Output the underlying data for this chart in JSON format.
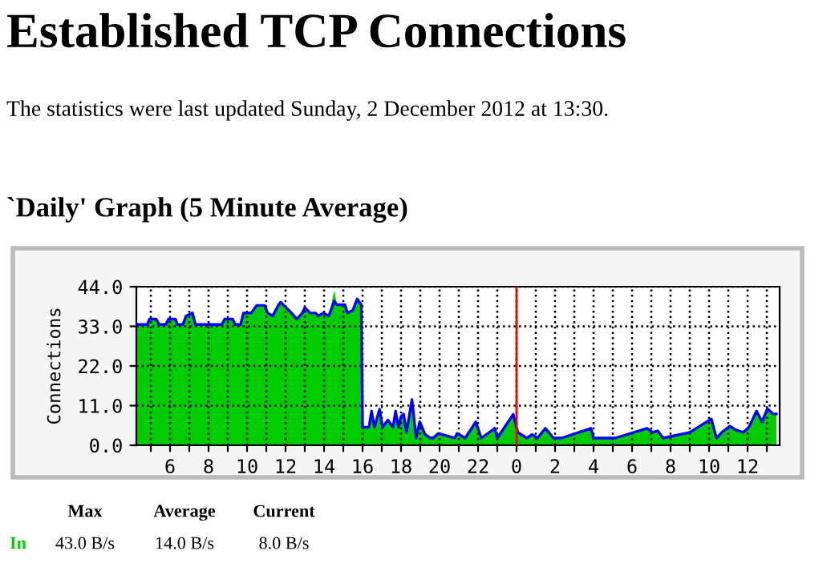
{
  "chart_data": {
    "type": "area",
    "title": "Established TCP Connections",
    "subtitle": "`Daily' Graph (5 Minute Average)",
    "ylabel": "Connections",
    "annotations": [
      "The statistics were last updated Sunday, 2 December 2012 at 13:30.",
      "Max",
      "Average",
      "Current",
      "43.0 B/s",
      "14.0 B/s",
      "8.0 B/s"
    ],
    "xlim": [
      "2012-12-01T04:15",
      "2012-12-02T13:40"
    ],
    "ylim": [
      0,
      44
    ],
    "xticks": [
      {
        "value": "2012-12-01T05:00",
        "label": null
      },
      {
        "value": "2012-12-01T06:00",
        "label": "6"
      },
      {
        "value": "2012-12-01T07:00",
        "label": null
      },
      {
        "value": "2012-12-01T08:00",
        "label": "8"
      },
      {
        "value": "2012-12-01T09:00",
        "label": null
      },
      {
        "value": "2012-12-01T10:00",
        "label": "10"
      },
      {
        "value": "2012-12-01T11:00",
        "label": null
      },
      {
        "value": "2012-12-01T12:00",
        "label": "12"
      },
      {
        "value": "2012-12-01T13:00",
        "label": null
      },
      {
        "value": "2012-12-01T14:00",
        "label": "14"
      },
      {
        "value": "2012-12-01T15:00",
        "label": null
      },
      {
        "value": "2012-12-01T16:00",
        "label": "16"
      },
      {
        "value": "2012-12-01T17:00",
        "label": null
      },
      {
        "value": "2012-12-01T18:00",
        "label": "18"
      },
      {
        "value": "2012-12-01T19:00",
        "label": null
      },
      {
        "value": "2012-12-01T20:00",
        "label": "20"
      },
      {
        "value": "2012-12-01T21:00",
        "label": null
      },
      {
        "value": "2012-12-01T22:00",
        "label": "22"
      },
      {
        "value": "2012-12-01T23:00",
        "label": null
      },
      {
        "value": "2012-12-02T00:00",
        "label": "0"
      },
      {
        "value": "2012-12-02T01:00",
        "label": null
      },
      {
        "value": "2012-12-02T02:00",
        "label": "2"
      },
      {
        "value": "2012-12-02T03:00",
        "label": null
      },
      {
        "value": "2012-12-02T04:00",
        "label": "4"
      },
      {
        "value": "2012-12-02T05:00",
        "label": null
      },
      {
        "value": "2012-12-02T06:00",
        "label": "6"
      },
      {
        "value": "2012-12-02T07:00",
        "label": null
      },
      {
        "value": "2012-12-02T08:00",
        "label": "8"
      },
      {
        "value": "2012-12-02T09:00",
        "label": null
      },
      {
        "value": "2012-12-02T10:00",
        "label": "10"
      },
      {
        "value": "2012-12-02T11:00",
        "label": null
      },
      {
        "value": "2012-12-02T12:00",
        "label": "12"
      },
      {
        "value": "2012-12-02T13:00",
        "label": null
      }
    ],
    "yticks": [
      {
        "value": 0,
        "label": "0.0"
      },
      {
        "value": 11,
        "label": "11.0"
      },
      {
        "value": 22,
        "label": "22.0"
      },
      {
        "value": 33,
        "label": "33.0"
      },
      {
        "value": 44,
        "label": "44.0"
      }
    ],
    "grid": true,
    "ref_lines": [
      {
        "axis": "x",
        "value": "2012-12-02T00:00",
        "color": "#ff0000"
      }
    ],
    "x": [
      "2012-12-01T04:17",
      "2012-12-01T04:49",
      "2012-12-01T04:56",
      "2012-12-01T05:17",
      "2012-12-01T05:26",
      "2012-12-01T05:47",
      "2012-12-01T05:55",
      "2012-12-01T06:17",
      "2012-12-01T06:23",
      "2012-12-01T06:40",
      "2012-12-01T06:50",
      "2012-12-01T07:10",
      "2012-12-01T07:19",
      "2012-12-01T08:41",
      "2012-12-01T08:50",
      "2012-12-01T09:15",
      "2012-12-01T09:23",
      "2012-12-01T09:40",
      "2012-12-01T09:49",
      "2012-12-01T10:13",
      "2012-12-01T10:30",
      "2012-12-01T10:55",
      "2012-12-01T11:04",
      "2012-12-01T11:20",
      "2012-12-01T11:37",
      "2012-12-01T11:45",
      "2012-12-01T12:02",
      "2012-12-01T12:19",
      "2012-12-01T12:35",
      "2012-12-01T12:52",
      "2012-12-01T13:00",
      "2012-12-01T13:17",
      "2012-12-01T13:34",
      "2012-12-01T13:41",
      "2012-12-01T13:58",
      "2012-12-01T14:15",
      "2012-12-01T14:32",
      "2012-12-01T14:40",
      "2012-12-01T15:05",
      "2012-12-01T15:13",
      "2012-12-01T15:30",
      "2012-12-01T15:43",
      "2012-12-01T15:56",
      "2012-12-01T16:00",
      "2012-12-01T16:05",
      "2012-12-01T16:20",
      "2012-12-01T16:28",
      "2012-12-01T16:37",
      "2012-12-01T16:53",
      "2012-12-01T17:02",
      "2012-12-01T17:19",
      "2012-12-01T17:35",
      "2012-12-01T17:43",
      "2012-12-01T17:52",
      "2012-12-01T18:00",
      "2012-12-01T18:08",
      "2012-12-01T18:17",
      "2012-12-01T18:34",
      "2012-12-01T18:47",
      "2012-12-01T18:58",
      "2012-12-01T19:15",
      "2012-12-01T19:32",
      "2012-12-01T19:40",
      "2012-12-01T19:56",
      "2012-12-01T20:47",
      "2012-12-01T20:55",
      "2012-12-01T21:20",
      "2012-12-01T21:53",
      "2012-12-01T22:10",
      "2012-12-01T22:26",
      "2012-12-01T22:52",
      "2012-12-01T23:00",
      "2012-12-01T23:34",
      "2012-12-01T23:50",
      "2012-12-02T00:04",
      "2012-12-02T00:32",
      "2012-12-02T00:49",
      "2012-12-02T01:05",
      "2012-12-02T01:30",
      "2012-12-02T01:55",
      "2012-12-02T02:20",
      "2012-12-02T03:52",
      "2012-12-02T04:00",
      "2012-12-02T05:07",
      "2012-12-02T06:47",
      "2012-12-02T07:04",
      "2012-12-02T07:20",
      "2012-12-02T07:37",
      "2012-12-02T09:00",
      "2012-12-02T10:07",
      "2012-12-02T10:23",
      "2012-12-02T10:40",
      "2012-12-02T11:05",
      "2012-12-02T11:22",
      "2012-12-02T11:47",
      "2012-12-02T12:04",
      "2012-12-02T12:28",
      "2012-12-02T12:45",
      "2012-12-02T13:02",
      "2012-12-02T13:19",
      "2012-12-02T13:30"
    ],
    "series": [
      {
        "name": "In",
        "color": "#00cc00",
        "values": [
          33.5,
          33.5,
          35,
          35,
          33.5,
          33.5,
          35,
          35,
          33.5,
          33.5,
          35.9,
          36.7,
          33.5,
          33.5,
          35,
          35,
          33.5,
          33.5,
          36.7,
          36.7,
          38.8,
          38.8,
          36.7,
          35.9,
          38.8,
          39.7,
          38.2,
          36.7,
          35,
          36.7,
          38.2,
          36.7,
          36.7,
          35.9,
          36.7,
          35.9,
          43,
          39,
          39,
          36.7,
          37.5,
          40.6,
          39,
          5,
          5,
          5,
          9.5,
          5,
          10,
          5,
          7,
          5,
          9.5,
          5,
          8,
          8.7,
          3.6,
          12.7,
          2,
          6.5,
          3,
          2,
          2,
          3.3,
          2,
          3.3,
          2,
          6.5,
          2,
          3,
          4.7,
          2,
          6.5,
          8.6,
          3.6,
          2,
          3,
          2,
          4.7,
          2,
          2,
          4.7,
          2,
          2,
          4.7,
          3.6,
          4,
          2,
          3.6,
          7.3,
          2,
          3.6,
          5.3,
          4.3,
          3.6,
          5,
          9.5,
          6.5,
          10.2,
          8.7,
          8.7
        ]
      },
      {
        "type": "line",
        "color": "#0000ff",
        "values": [
          33.5,
          33.5,
          35,
          35,
          33.5,
          33.5,
          35,
          35,
          33.5,
          33.5,
          35.9,
          36.7,
          33.5,
          33.5,
          35,
          35,
          33.5,
          33.5,
          36.7,
          36.7,
          38.8,
          38.8,
          36.7,
          35.9,
          38.8,
          39.7,
          38.2,
          36.7,
          35,
          36.7,
          38.2,
          36.7,
          36.7,
          35.9,
          36.7,
          35.9,
          40,
          39,
          39,
          36.7,
          37.5,
          40.6,
          39,
          5,
          5,
          5,
          9.5,
          5,
          10,
          5,
          7,
          5,
          9.5,
          5,
          8,
          8.7,
          3.6,
          12.7,
          2,
          6.5,
          3,
          2,
          2,
          3.3,
          2,
          3.3,
          2,
          6.5,
          2,
          3,
          4.7,
          2,
          6.5,
          8.6,
          3.6,
          2,
          3,
          2,
          4.7,
          2,
          2,
          4.7,
          2,
          2,
          4.7,
          3.6,
          4,
          2,
          3.6,
          7.3,
          2,
          3.6,
          5.3,
          4.3,
          3.6,
          5,
          9.5,
          6.5,
          10.2,
          8.7,
          8.7
        ]
      }
    ]
  }
}
